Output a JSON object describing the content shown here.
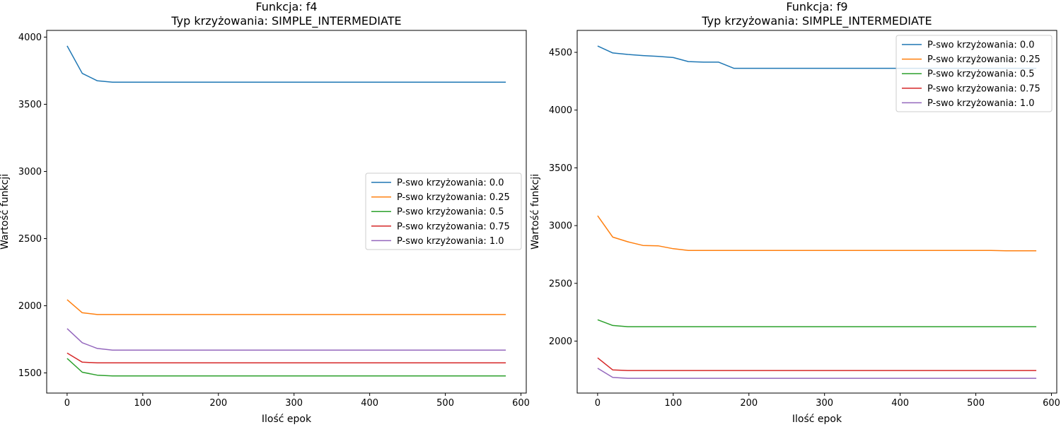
{
  "chart_data": [
    {
      "type": "line",
      "title": "Funkcja: f4",
      "subtitle": "Typ krzyżowania: SIMPLE_INTERMEDIATE",
      "xlabel": "Ilość epok",
      "ylabel": "Wartość funkcji",
      "xlim": [
        -27,
        607
      ],
      "ylim": [
        1350,
        4050
      ],
      "xticks": [
        0,
        100,
        200,
        300,
        400,
        500,
        600
      ],
      "yticks": [
        1500,
        2000,
        2500,
        3000,
        3500,
        4000
      ],
      "grid": false,
      "legend_position": "center-right",
      "x": [
        0,
        20,
        40,
        60,
        80,
        100,
        120,
        140,
        160,
        180,
        200,
        220,
        240,
        260,
        280,
        300,
        320,
        340,
        360,
        380,
        400,
        420,
        440,
        460,
        480,
        500,
        520,
        540,
        560,
        580
      ],
      "series": [
        {
          "name": "P-swo krzyżowania: 0.0",
          "color": "#1f77b4",
          "values": [
            3935,
            3730,
            3675,
            3665,
            3665,
            3665,
            3665,
            3665,
            3665,
            3665,
            3665,
            3665,
            3665,
            3665,
            3665,
            3665,
            3665,
            3665,
            3665,
            3665,
            3665,
            3665,
            3665,
            3665,
            3665,
            3665,
            3665,
            3665,
            3665,
            3665
          ]
        },
        {
          "name": "P-swo krzyżowania: 0.25",
          "color": "#ff7f0e",
          "values": [
            2045,
            1948,
            1935,
            1935,
            1935,
            1935,
            1935,
            1935,
            1935,
            1935,
            1935,
            1935,
            1935,
            1935,
            1935,
            1935,
            1935,
            1935,
            1935,
            1935,
            1935,
            1935,
            1935,
            1935,
            1935,
            1935,
            1935,
            1935,
            1935,
            1935
          ]
        },
        {
          "name": "P-swo krzyżowania: 0.5",
          "color": "#2ca02c",
          "values": [
            1608,
            1505,
            1483,
            1478,
            1478,
            1478,
            1478,
            1478,
            1478,
            1478,
            1478,
            1478,
            1478,
            1478,
            1478,
            1478,
            1478,
            1478,
            1478,
            1478,
            1478,
            1478,
            1478,
            1478,
            1478,
            1478,
            1478,
            1478,
            1478,
            1478
          ]
        },
        {
          "name": "P-swo krzyżowania: 0.75",
          "color": "#d62728",
          "values": [
            1648,
            1580,
            1575,
            1575,
            1575,
            1575,
            1575,
            1575,
            1575,
            1575,
            1575,
            1575,
            1575,
            1575,
            1575,
            1575,
            1575,
            1575,
            1575,
            1575,
            1575,
            1575,
            1575,
            1575,
            1575,
            1575,
            1575,
            1575,
            1575,
            1575
          ]
        },
        {
          "name": "P-swo krzyżowania: 1.0",
          "color": "#9467bd",
          "values": [
            1830,
            1725,
            1682,
            1670,
            1670,
            1670,
            1670,
            1670,
            1670,
            1670,
            1670,
            1670,
            1670,
            1670,
            1670,
            1670,
            1670,
            1670,
            1670,
            1670,
            1670,
            1670,
            1670,
            1670,
            1670,
            1670,
            1670,
            1670,
            1670,
            1670
          ]
        }
      ]
    },
    {
      "type": "line",
      "title": "Funkcja: f9",
      "subtitle": "Typ krzyżowania: SIMPLE_INTERMEDIATE",
      "xlabel": "Ilość epok",
      "ylabel": "Wartość funkcji",
      "xlim": [
        -27,
        607
      ],
      "ylim": [
        1550,
        4690
      ],
      "xticks": [
        0,
        100,
        200,
        300,
        400,
        500,
        600
      ],
      "yticks": [
        2000,
        2500,
        3000,
        3500,
        4000,
        4500
      ],
      "grid": false,
      "legend_position": "upper-right",
      "x": [
        0,
        20,
        40,
        60,
        80,
        100,
        120,
        140,
        160,
        180,
        200,
        220,
        240,
        260,
        280,
        300,
        320,
        340,
        360,
        380,
        400,
        420,
        440,
        460,
        480,
        500,
        520,
        540,
        560,
        580
      ],
      "series": [
        {
          "name": "P-swo krzyżowania: 0.0",
          "color": "#1f77b4",
          "values": [
            4555,
            4495,
            4482,
            4472,
            4465,
            4455,
            4420,
            4415,
            4415,
            4362,
            4362,
            4362,
            4362,
            4362,
            4362,
            4362,
            4362,
            4362,
            4362,
            4362,
            4362,
            4362,
            4362,
            4362,
            4362,
            4362,
            4362,
            4362,
            4362,
            4362
          ]
        },
        {
          "name": "P-swo krzyżowania: 0.25",
          "color": "#ff7f0e",
          "values": [
            3085,
            2900,
            2860,
            2828,
            2825,
            2800,
            2785,
            2785,
            2785,
            2785,
            2785,
            2785,
            2785,
            2785,
            2785,
            2785,
            2785,
            2785,
            2785,
            2785,
            2785,
            2785,
            2785,
            2785,
            2785,
            2785,
            2785,
            2782,
            2782,
            2782
          ]
        },
        {
          "name": "P-swo krzyżowania: 0.5",
          "color": "#2ca02c",
          "values": [
            2185,
            2135,
            2125,
            2125,
            2125,
            2125,
            2125,
            2125,
            2125,
            2125,
            2125,
            2125,
            2125,
            2125,
            2125,
            2125,
            2125,
            2125,
            2125,
            2125,
            2125,
            2125,
            2125,
            2125,
            2125,
            2125,
            2125,
            2125,
            2125,
            2125
          ]
        },
        {
          "name": "P-swo krzyżowania: 0.75",
          "color": "#d62728",
          "values": [
            1855,
            1750,
            1745,
            1745,
            1745,
            1745,
            1745,
            1745,
            1745,
            1745,
            1745,
            1745,
            1745,
            1745,
            1745,
            1745,
            1745,
            1745,
            1745,
            1745,
            1745,
            1745,
            1745,
            1745,
            1745,
            1745,
            1745,
            1745,
            1745,
            1745
          ]
        },
        {
          "name": "P-swo krzyżowania: 1.0",
          "color": "#9467bd",
          "values": [
            1765,
            1685,
            1678,
            1678,
            1678,
            1678,
            1678,
            1678,
            1678,
            1678,
            1678,
            1678,
            1678,
            1678,
            1678,
            1678,
            1678,
            1678,
            1678,
            1678,
            1678,
            1678,
            1678,
            1678,
            1678,
            1678,
            1678,
            1678,
            1678,
            1678
          ]
        }
      ]
    }
  ]
}
